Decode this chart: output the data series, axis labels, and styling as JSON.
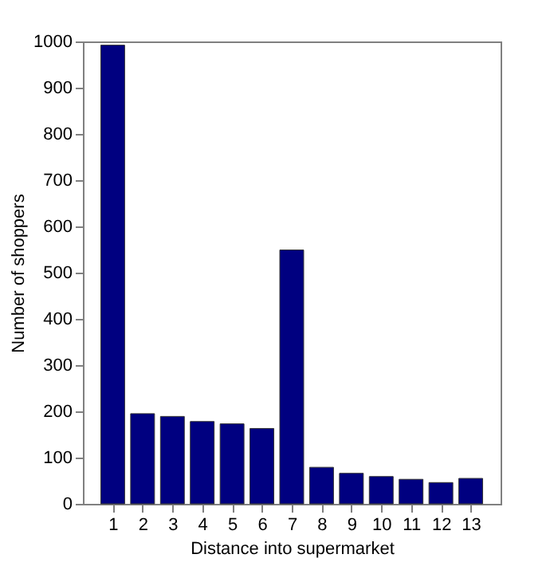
{
  "chart_data": {
    "type": "bar",
    "xlabel": "Distance into supermarket",
    "ylabel": "Number of shoppers",
    "x": [
      1,
      2,
      3,
      4,
      5,
      6,
      7,
      8,
      9,
      10,
      11,
      12,
      13
    ],
    "values": [
      992,
      195,
      189,
      178,
      173,
      163,
      549,
      79,
      66,
      59,
      53,
      46,
      55
    ],
    "color": "#000080",
    "xlim": [
      0,
      14
    ],
    "xticks": [
      1,
      2,
      3,
      4,
      5,
      6,
      7,
      8,
      9,
      10,
      11,
      12,
      13
    ],
    "ylim": [
      0,
      1000
    ],
    "yticks": [
      0,
      100,
      200,
      300,
      400,
      500,
      600,
      700,
      800,
      900,
      1000
    ],
    "grid": false
  }
}
